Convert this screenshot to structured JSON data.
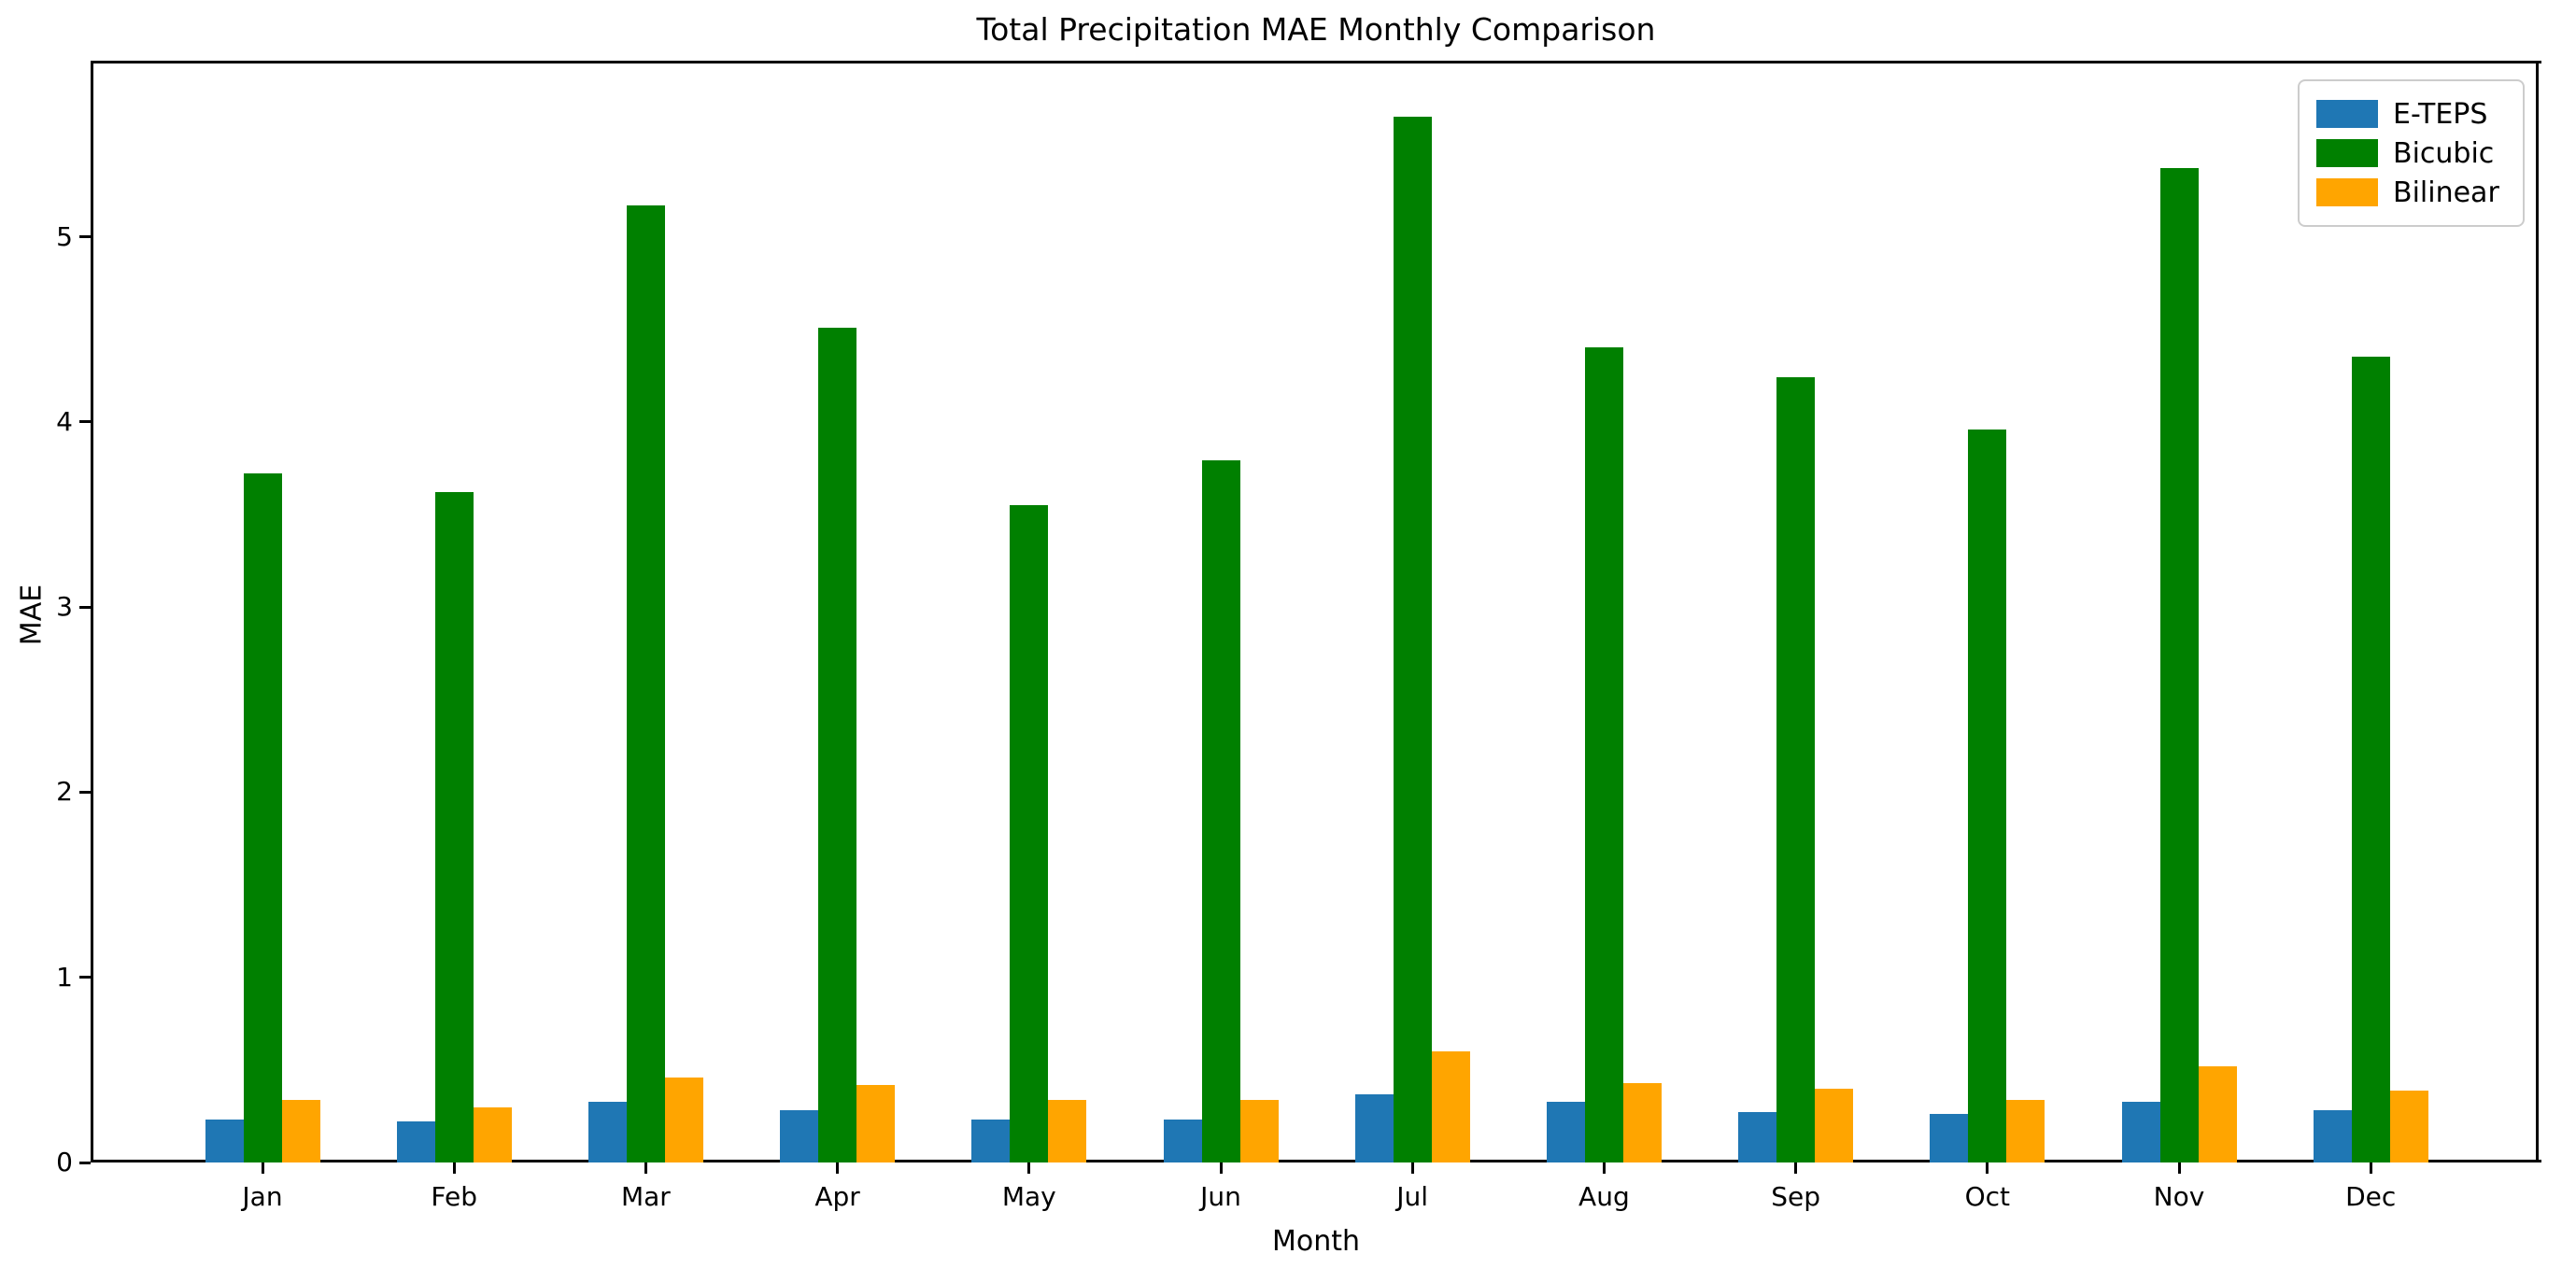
{
  "chart_data": {
    "type": "bar",
    "title": "Total Precipitation MAE Monthly Comparison",
    "xlabel": "Month",
    "ylabel": "MAE",
    "categories": [
      "Jan",
      "Feb",
      "Mar",
      "Apr",
      "May",
      "Jun",
      "Jul",
      "Aug",
      "Sep",
      "Oct",
      "Nov",
      "Dec"
    ],
    "series": [
      {
        "name": "E-TEPS",
        "color": "#1f77b4",
        "values": [
          0.23,
          0.22,
          0.33,
          0.28,
          0.23,
          0.23,
          0.37,
          0.33,
          0.27,
          0.26,
          0.33,
          0.28
        ]
      },
      {
        "name": "Bicubic",
        "color": "#008000",
        "values": [
          3.72,
          3.62,
          5.17,
          4.51,
          3.55,
          3.79,
          5.65,
          4.4,
          4.24,
          3.96,
          5.37,
          4.35
        ]
      },
      {
        "name": "Bilinear",
        "color": "#ffa500",
        "values": [
          0.34,
          0.3,
          0.46,
          0.42,
          0.34,
          0.34,
          0.6,
          0.43,
          0.4,
          0.34,
          0.52,
          0.39
        ]
      }
    ],
    "yticks": [
      0,
      1,
      2,
      3,
      4,
      5
    ],
    "ylim": [
      0,
      5.94
    ],
    "grid": false,
    "legend_position": "upper right",
    "background_color": "#ffffff",
    "text_color": "#000000"
  }
}
